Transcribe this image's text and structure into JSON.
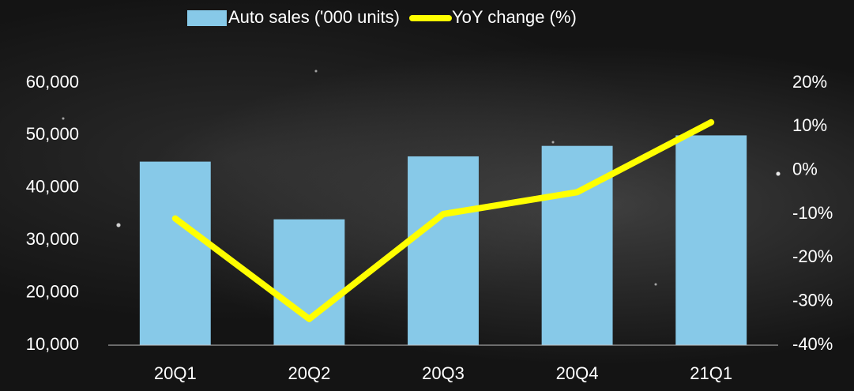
{
  "chart_data": {
    "type": "combo",
    "categories": [
      "20Q1",
      "20Q2",
      "20Q3",
      "20Q4",
      "21Q1"
    ],
    "series": [
      {
        "name": "Auto sales ('000 units)",
        "type": "bar",
        "color": "#87c9e8",
        "values": [
          45000,
          34000,
          46000,
          48000,
          50000
        ]
      },
      {
        "name": "YoY change (%)",
        "type": "line",
        "axis": "y2",
        "color": "#ffff00",
        "values": [
          -11,
          -34,
          -10,
          -5,
          11
        ]
      }
    ],
    "ylim": [
      10000,
      60000
    ],
    "yticks": [
      {
        "value": 10000,
        "label": "10,000"
      },
      {
        "value": 20000,
        "label": "20,000"
      },
      {
        "value": 30000,
        "label": "30,000"
      },
      {
        "value": 40000,
        "label": "40,000"
      },
      {
        "value": 50000,
        "label": "50,000"
      },
      {
        "value": 60000,
        "label": "60,000"
      }
    ],
    "y2lim": [
      -40,
      20
    ],
    "y2ticks": [
      {
        "value": -40,
        "label": "-40%"
      },
      {
        "value": -30,
        "label": "-30%"
      },
      {
        "value": -20,
        "label": "-20%"
      },
      {
        "value": -10,
        "label": "-10%"
      },
      {
        "value": 0,
        "label": "0%"
      },
      {
        "value": 10,
        "label": "10%"
      },
      {
        "value": 20,
        "label": "20%"
      }
    ],
    "legend": "top"
  }
}
